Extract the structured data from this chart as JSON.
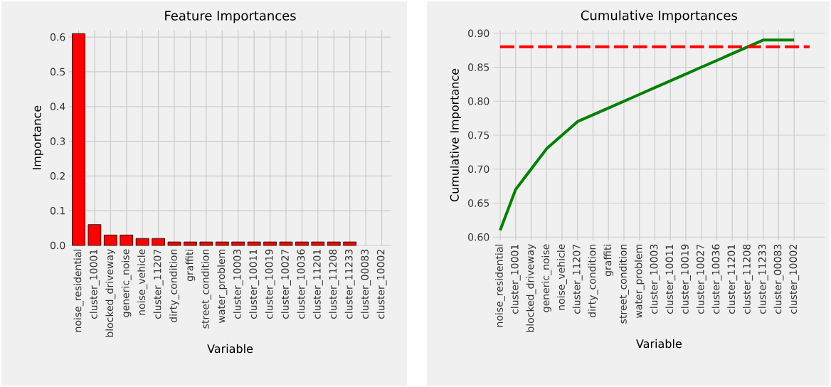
{
  "chart_data": [
    {
      "type": "bar",
      "title": "Feature Importances",
      "xlabel": "Variable",
      "ylabel": "Importance",
      "color": "#ff0000",
      "grid": true,
      "categories": [
        "noise_residential",
        "cluster_10001",
        "blocked_driveway",
        "generic_noise",
        "noise_vehicle",
        "cluster_11207",
        "dirty_condition",
        "graffiti",
        "street_condition",
        "water_problem",
        "cluster_10003",
        "cluster_10011",
        "cluster_10019",
        "cluster_10027",
        "cluster_10036",
        "cluster_11201",
        "cluster_11208",
        "cluster_11233",
        "cluster_00083",
        "cluster_10002"
      ],
      "values": [
        0.61,
        0.06,
        0.03,
        0.03,
        0.02,
        0.02,
        0.01,
        0.01,
        0.01,
        0.01,
        0.01,
        0.01,
        0.01,
        0.01,
        0.01,
        0.01,
        0.01,
        0.01,
        0,
        0
      ],
      "ylim": [
        0,
        0.62
      ],
      "yticks": [
        {
          "value": 0,
          "label": "0.0"
        },
        {
          "value": 0.1,
          "label": "0.1"
        },
        {
          "value": 0.2,
          "label": "0.2"
        },
        {
          "value": 0.3,
          "label": "0.3"
        },
        {
          "value": 0.4,
          "label": "0.4"
        },
        {
          "value": 0.5,
          "label": "0.5"
        },
        {
          "value": 0.6,
          "label": "0.6"
        }
      ]
    },
    {
      "type": "line",
      "title": "Cumulative Importances",
      "xlabel": "Variable",
      "ylabel": "Cumulative Importance",
      "color": "#008000",
      "grid": true,
      "categories": [
        "noise_residential",
        "cluster_10001",
        "blocked_driveway",
        "generic_noise",
        "noise_vehicle",
        "cluster_11207",
        "dirty_condition",
        "graffiti",
        "street_condition",
        "water_problem",
        "cluster_10003",
        "cluster_10011",
        "cluster_10019",
        "cluster_10027",
        "cluster_10036",
        "cluster_11201",
        "cluster_11208",
        "cluster_11233",
        "cluster_00083",
        "cluster_10002"
      ],
      "values": [
        0.61,
        0.67,
        0.7,
        0.73,
        0.75,
        0.77,
        0.78,
        0.79,
        0.8,
        0.81,
        0.82,
        0.83,
        0.84,
        0.85,
        0.86,
        0.87,
        0.88,
        0.89,
        0.89,
        0.89
      ],
      "ylim": [
        0.595,
        0.905
      ],
      "yticks": [
        {
          "value": 0.6,
          "label": "0.60"
        },
        {
          "value": 0.65,
          "label": "0.65"
        },
        {
          "value": 0.7,
          "label": "0.70"
        },
        {
          "value": 0.75,
          "label": "0.75"
        },
        {
          "value": 0.8,
          "label": "0.80"
        },
        {
          "value": 0.85,
          "label": "0.85"
        },
        {
          "value": 0.9,
          "label": "0.90"
        }
      ],
      "ref_lines": [
        {
          "axis": "y",
          "value": 0.88,
          "color": "#ff0000",
          "line_style": "dashed"
        }
      ]
    }
  ]
}
